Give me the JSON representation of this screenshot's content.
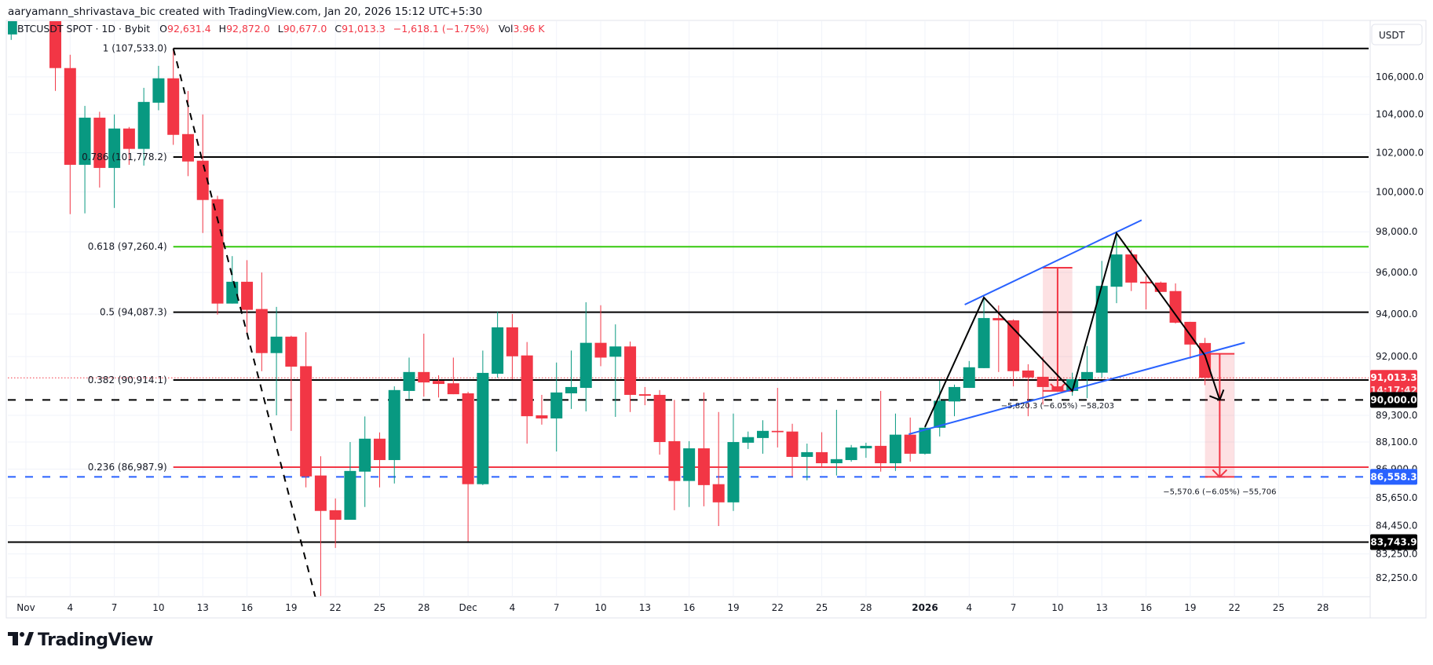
{
  "header": {
    "attribution": "aaryamann_shrivastava_bic created with TradingView.com, Jan 20, 2026 15:12 UTC+5:30"
  },
  "legend": {
    "symbol": "BTCUSDT SPOT · 1D · Bybit",
    "o_label": "O",
    "open": "92,631.4",
    "h_label": "H",
    "high": "92,872.0",
    "l_label": "L",
    "low": "90,677.0",
    "c_label": "C",
    "close": "91,013.3",
    "change": "−1,618.1 (−1.75%)",
    "vol_label": "Vol",
    "volume": "3.96 K"
  },
  "price_axis": {
    "currency": "USDT",
    "ticks": [
      {
        "price": 106000,
        "text": "106,000.0"
      },
      {
        "price": 104000,
        "text": "104,000.0"
      },
      {
        "price": 102000,
        "text": "102,000.0"
      },
      {
        "price": 100000,
        "text": "100,000.0"
      },
      {
        "price": 98000,
        "text": "98,000.0"
      },
      {
        "price": 96000,
        "text": "96,000.0"
      },
      {
        "price": 94000,
        "text": "94,000.0"
      },
      {
        "price": 92000,
        "text": "92,000.0"
      },
      {
        "price": 89300,
        "text": "89,300.0"
      },
      {
        "price": 88100,
        "text": "88,100.0"
      },
      {
        "price": 86900,
        "text": "86,900.0"
      },
      {
        "price": 85650,
        "text": "85,650.0"
      },
      {
        "price": 84450,
        "text": "84,450.0"
      },
      {
        "price": 83250,
        "text": "83,250.0"
      },
      {
        "price": 82250,
        "text": "82,250.0"
      }
    ]
  },
  "badges": [
    {
      "price": 91013.3,
      "text": "91,013.3",
      "sub": "14:17:42",
      "color": "#f23645"
    },
    {
      "price": 90000.0,
      "text": "90,000.0",
      "color": "#000000"
    },
    {
      "price": 86558.3,
      "text": "86,558.3",
      "color": "#2962ff"
    },
    {
      "price": 83743.9,
      "text": "83,743.9",
      "color": "#000000"
    }
  ],
  "time_axis": {
    "labels": [
      {
        "date": "2025-11-01",
        "text": "Nov",
        "bold": false
      },
      {
        "date": "2025-11-04",
        "text": "4"
      },
      {
        "date": "2025-11-07",
        "text": "7"
      },
      {
        "date": "2025-11-10",
        "text": "10"
      },
      {
        "date": "2025-11-13",
        "text": "13"
      },
      {
        "date": "2025-11-16",
        "text": "16"
      },
      {
        "date": "2025-11-19",
        "text": "19"
      },
      {
        "date": "2025-11-22",
        "text": "22"
      },
      {
        "date": "2025-11-25",
        "text": "25"
      },
      {
        "date": "2025-11-28",
        "text": "28"
      },
      {
        "date": "2025-12-01",
        "text": "Dec"
      },
      {
        "date": "2025-12-04",
        "text": "4"
      },
      {
        "date": "2025-12-07",
        "text": "7"
      },
      {
        "date": "2025-12-10",
        "text": "10"
      },
      {
        "date": "2025-12-13",
        "text": "13"
      },
      {
        "date": "2025-12-16",
        "text": "16"
      },
      {
        "date": "2025-12-19",
        "text": "19"
      },
      {
        "date": "2025-12-22",
        "text": "22"
      },
      {
        "date": "2025-12-25",
        "text": "25"
      },
      {
        "date": "2025-12-28",
        "text": "28"
      },
      {
        "date": "2026-01-01",
        "text": "2026",
        "bold": true
      },
      {
        "date": "2026-01-04",
        "text": "4"
      },
      {
        "date": "2026-01-07",
        "text": "7"
      },
      {
        "date": "2026-01-10",
        "text": "10"
      },
      {
        "date": "2026-01-13",
        "text": "13"
      },
      {
        "date": "2026-01-16",
        "text": "16"
      },
      {
        "date": "2026-01-19",
        "text": "19"
      },
      {
        "date": "2026-01-22",
        "text": "22"
      },
      {
        "date": "2026-01-25",
        "text": "25"
      },
      {
        "date": "2026-01-28",
        "text": "28"
      }
    ]
  },
  "logo": {
    "text": "TradingView"
  },
  "colors": {
    "up": "#089981",
    "down": "#f23645",
    "fib_green": "#36c90f",
    "blue": "#2962ff",
    "grid": "#f0f3fa"
  },
  "chart_data": {
    "type": "candlestick",
    "symbol": "BTCUSDT SPOT",
    "interval": "1D",
    "y_scale": "log",
    "ylim": [
      81500,
      109000
    ],
    "xlim": [
      "2025-10-31",
      "2026-01-31"
    ],
    "grid": true,
    "candles": [
      {
        "d": "2025-10-31",
        "o": 108300,
        "h": 110000,
        "l": 108000,
        "c": 109600
      },
      {
        "d": "2025-11-01",
        "o": 109600,
        "h": 110200,
        "l": 109400,
        "c": 110100
      },
      {
        "d": "2025-11-02",
        "o": 110100,
        "h": 111200,
        "l": 109700,
        "c": 110600
      },
      {
        "d": "2025-11-03",
        "o": 110600,
        "h": 110750,
        "l": 105250,
        "c": 106470
      },
      {
        "d": "2025-11-04",
        "o": 106470,
        "h": 107190,
        "l": 98880,
        "c": 101380
      },
      {
        "d": "2025-11-05",
        "o": 101380,
        "h": 104450,
        "l": 98920,
        "c": 103830
      },
      {
        "d": "2025-11-06",
        "o": 103830,
        "h": 104140,
        "l": 100220,
        "c": 101220
      },
      {
        "d": "2025-11-07",
        "o": 101220,
        "h": 104000,
        "l": 99190,
        "c": 103260
      },
      {
        "d": "2025-11-08",
        "o": 103260,
        "h": 103340,
        "l": 101380,
        "c": 102200
      },
      {
        "d": "2025-11-09",
        "o": 102200,
        "h": 105410,
        "l": 101340,
        "c": 104660
      },
      {
        "d": "2025-11-10",
        "o": 104620,
        "h": 106590,
        "l": 104220,
        "c": 105920
      },
      {
        "d": "2025-11-11",
        "o": 105920,
        "h": 107533,
        "l": 102410,
        "c": 102930
      },
      {
        "d": "2025-11-12",
        "o": 102970,
        "h": 105240,
        "l": 100800,
        "c": 101550
      },
      {
        "d": "2025-11-13",
        "o": 101590,
        "h": 104000,
        "l": 97940,
        "c": 99590
      },
      {
        "d": "2025-11-14",
        "o": 99630,
        "h": 99800,
        "l": 93970,
        "c": 94500
      },
      {
        "d": "2025-11-15",
        "o": 94500,
        "h": 96800,
        "l": 94500,
        "c": 95550
      },
      {
        "d": "2025-11-16",
        "o": 95550,
        "h": 96600,
        "l": 93040,
        "c": 94200
      },
      {
        "d": "2025-11-17",
        "o": 94240,
        "h": 96000,
        "l": 91320,
        "c": 92160
      },
      {
        "d": "2025-11-18",
        "o": 92160,
        "h": 94340,
        "l": 89300,
        "c": 92930
      },
      {
        "d": "2025-11-19",
        "o": 92930,
        "h": 92970,
        "l": 88600,
        "c": 91530
      },
      {
        "d": "2025-11-20",
        "o": 91550,
        "h": 93140,
        "l": 86100,
        "c": 86580
      },
      {
        "d": "2025-11-21",
        "o": 86620,
        "h": 87470,
        "l": 81490,
        "c": 85080
      },
      {
        "d": "2025-11-22",
        "o": 85110,
        "h": 85620,
        "l": 83500,
        "c": 84700
      },
      {
        "d": "2025-11-23",
        "o": 84700,
        "h": 88100,
        "l": 84700,
        "c": 86820
      },
      {
        "d": "2025-11-24",
        "o": 86790,
        "h": 89250,
        "l": 85250,
        "c": 88250
      },
      {
        "d": "2025-11-25",
        "o": 88250,
        "h": 88530,
        "l": 86100,
        "c": 87300
      },
      {
        "d": "2025-11-26",
        "o": 87300,
        "h": 90620,
        "l": 86270,
        "c": 90450
      },
      {
        "d": "2025-11-27",
        "o": 90410,
        "h": 91950,
        "l": 90040,
        "c": 91280
      },
      {
        "d": "2025-11-28",
        "o": 91280,
        "h": 93070,
        "l": 90150,
        "c": 90800
      },
      {
        "d": "2025-11-29",
        "o": 90870,
        "h": 91130,
        "l": 90110,
        "c": 90730
      },
      {
        "d": "2025-11-30",
        "o": 90760,
        "h": 91950,
        "l": 90260,
        "c": 90260
      },
      {
        "d": "2025-12-01",
        "o": 90300,
        "h": 90370,
        "l": 83780,
        "c": 86240
      },
      {
        "d": "2025-12-02",
        "o": 86240,
        "h": 92280,
        "l": 86200,
        "c": 91240
      },
      {
        "d": "2025-12-03",
        "o": 91200,
        "h": 94110,
        "l": 91020,
        "c": 93370
      },
      {
        "d": "2025-12-04",
        "o": 93370,
        "h": 94000,
        "l": 90950,
        "c": 92010
      },
      {
        "d": "2025-12-05",
        "o": 92050,
        "h": 92680,
        "l": 88030,
        "c": 89260
      },
      {
        "d": "2025-12-06",
        "o": 89300,
        "h": 90230,
        "l": 88880,
        "c": 89160
      },
      {
        "d": "2025-12-07",
        "o": 89160,
        "h": 91720,
        "l": 87680,
        "c": 90340
      },
      {
        "d": "2025-12-08",
        "o": 90300,
        "h": 92280,
        "l": 89590,
        "c": 90590
      },
      {
        "d": "2025-12-09",
        "o": 90550,
        "h": 94560,
        "l": 89480,
        "c": 92640
      },
      {
        "d": "2025-12-10",
        "o": 92640,
        "h": 94420,
        "l": 91550,
        "c": 91950
      },
      {
        "d": "2025-12-11",
        "o": 91990,
        "h": 93510,
        "l": 89230,
        "c": 92470
      },
      {
        "d": "2025-12-12",
        "o": 92470,
        "h": 92700,
        "l": 89450,
        "c": 90230
      },
      {
        "d": "2025-12-13",
        "o": 90260,
        "h": 90590,
        "l": 89760,
        "c": 90190
      },
      {
        "d": "2025-12-14",
        "o": 90230,
        "h": 90450,
        "l": 87540,
        "c": 88100
      },
      {
        "d": "2025-12-15",
        "o": 88140,
        "h": 90000,
        "l": 85110,
        "c": 86380
      },
      {
        "d": "2025-12-16",
        "o": 86380,
        "h": 88140,
        "l": 85250,
        "c": 87820
      },
      {
        "d": "2025-12-17",
        "o": 87820,
        "h": 90340,
        "l": 85280,
        "c": 86200
      },
      {
        "d": "2025-12-18",
        "o": 86240,
        "h": 89450,
        "l": 84430,
        "c": 85450
      },
      {
        "d": "2025-12-19",
        "o": 85450,
        "h": 89380,
        "l": 85080,
        "c": 88100
      },
      {
        "d": "2025-12-20",
        "o": 88070,
        "h": 88570,
        "l": 87790,
        "c": 88320
      },
      {
        "d": "2025-12-21",
        "o": 88280,
        "h": 89080,
        "l": 87580,
        "c": 88600
      },
      {
        "d": "2025-12-22",
        "o": 88600,
        "h": 90550,
        "l": 87860,
        "c": 88540
      },
      {
        "d": "2025-12-23",
        "o": 88570,
        "h": 88920,
        "l": 86580,
        "c": 87440
      },
      {
        "d": "2025-12-24",
        "o": 87440,
        "h": 88030,
        "l": 86410,
        "c": 87650
      },
      {
        "d": "2025-12-25",
        "o": 87650,
        "h": 88540,
        "l": 86990,
        "c": 87160
      },
      {
        "d": "2025-12-26",
        "o": 87160,
        "h": 89550,
        "l": 86620,
        "c": 87340
      },
      {
        "d": "2025-12-27",
        "o": 87300,
        "h": 87970,
        "l": 87230,
        "c": 87860
      },
      {
        "d": "2025-12-28",
        "o": 87820,
        "h": 88070,
        "l": 87400,
        "c": 87930
      },
      {
        "d": "2025-12-29",
        "o": 87930,
        "h": 90410,
        "l": 86790,
        "c": 87160
      },
      {
        "d": "2025-12-30",
        "o": 87160,
        "h": 89380,
        "l": 86820,
        "c": 88430
      },
      {
        "d": "2025-12-31",
        "o": 88430,
        "h": 89200,
        "l": 87230,
        "c": 87580
      },
      {
        "d": "2026-01-01",
        "o": 87580,
        "h": 88770,
        "l": 87540,
        "c": 88740
      },
      {
        "d": "2026-01-02",
        "o": 88740,
        "h": 90880,
        "l": 88350,
        "c": 89960
      },
      {
        "d": "2026-01-03",
        "o": 89930,
        "h": 90700,
        "l": 89260,
        "c": 90590
      },
      {
        "d": "2026-01-04",
        "o": 90550,
        "h": 91790,
        "l": 90550,
        "c": 91500
      },
      {
        "d": "2026-01-05",
        "o": 91460,
        "h": 94790,
        "l": 91460,
        "c": 93810
      },
      {
        "d": "2026-01-06",
        "o": 93810,
        "h": 94410,
        "l": 91280,
        "c": 93700
      },
      {
        "d": "2026-01-07",
        "o": 93700,
        "h": 93750,
        "l": 90620,
        "c": 91320
      },
      {
        "d": "2026-01-08",
        "o": 91350,
        "h": 91640,
        "l": 89260,
        "c": 91030
      },
      {
        "d": "2026-01-09",
        "o": 91060,
        "h": 91990,
        "l": 89790,
        "c": 90590
      },
      {
        "d": "2026-01-10",
        "o": 90620,
        "h": 90700,
        "l": 90410,
        "c": 90410
      },
      {
        "d": "2026-01-11",
        "o": 90410,
        "h": 91250,
        "l": 90190,
        "c": 90950
      },
      {
        "d": "2026-01-12",
        "o": 90950,
        "h": 92490,
        "l": 90080,
        "c": 91280
      },
      {
        "d": "2026-01-13",
        "o": 91250,
        "h": 96560,
        "l": 91030,
        "c": 95350
      },
      {
        "d": "2026-01-14",
        "o": 95310,
        "h": 97930,
        "l": 94520,
        "c": 96880
      },
      {
        "d": "2026-01-15",
        "o": 96880,
        "h": 97110,
        "l": 95100,
        "c": 95510
      },
      {
        "d": "2026-01-16",
        "o": 95550,
        "h": 95820,
        "l": 94220,
        "c": 95470
      },
      {
        "d": "2026-01-17",
        "o": 95510,
        "h": 95560,
        "l": 95060,
        "c": 95060
      },
      {
        "d": "2026-01-18",
        "o": 95100,
        "h": 95470,
        "l": 93550,
        "c": 93590
      },
      {
        "d": "2026-01-19",
        "o": 93630,
        "h": 93630,
        "l": 91900,
        "c": 92560
      },
      {
        "d": "2026-01-20",
        "o": 92631.4,
        "h": 92872.0,
        "l": 90677.0,
        "c": 91013.3
      }
    ],
    "fib_retracement": {
      "start_date": "2025-11-11",
      "levels": [
        {
          "ratio": "1",
          "price": 107533.0,
          "label": "1 (107,533.0)",
          "color": "#000000"
        },
        {
          "ratio": "0.786",
          "price": 101778.2,
          "label": "0.786 (101,778.2)",
          "color": "#000000"
        },
        {
          "ratio": "0.618",
          "price": 97260.4,
          "label": "0.618 (97,260.4)",
          "color": "#36c90f"
        },
        {
          "ratio": "0.5",
          "price": 94087.3,
          "label": "0.5 (94,087.3)",
          "color": "#000000"
        },
        {
          "ratio": "0.382",
          "price": 90914.1,
          "label": "0.382 (90,914.1)",
          "color": "#000000"
        },
        {
          "ratio": "0.236",
          "price": 86987.9,
          "label": "0.236 (86,987.9)",
          "color": "#f23645"
        }
      ]
    },
    "horizontal_lines": [
      {
        "price": 90000.0,
        "style": "dashed",
        "color": "#000000"
      },
      {
        "price": 86558.3,
        "style": "dashed",
        "color": "#2962ff"
      },
      {
        "price": 83743.9,
        "style": "solid",
        "color": "#000000"
      },
      {
        "price": 91013.3,
        "style": "dotted",
        "color": "#f23645"
      }
    ],
    "trend_line": {
      "style": "dashed",
      "color": "#000000",
      "points": [
        {
          "d": "2025-11-11",
          "p": 107533
        },
        {
          "d": "2025-11-21",
          "p": 80600
        }
      ]
    },
    "zigzag": {
      "color": "#000000",
      "points": [
        {
          "d": "2026-01-01",
          "p": 88770
        },
        {
          "d": "2026-01-05",
          "p": 94790
        },
        {
          "d": "2026-01-11",
          "p": 90410
        },
        {
          "d": "2026-01-14",
          "p": 97930
        },
        {
          "d": "2026-01-20",
          "p": 92050
        },
        {
          "d": "2026-01-21",
          "p": 90000
        }
      ]
    },
    "channel": {
      "color": "#2962ff",
      "lines": [
        [
          {
            "d": "2026-01-03.7",
            "p": 94450
          },
          {
            "d": "2026-01-15.7",
            "p": 98580
          }
        ],
        [
          {
            "d": "2025-12-30.9",
            "p": 88450
          },
          {
            "d": "2026-01-22.7",
            "p": 92650
          }
        ]
      ]
    },
    "measures": [
      {
        "from_date": "2026-01-09",
        "to_date": "2026-01-11",
        "top": 96230.0,
        "bottom": 90410.0,
        "label": "−5,820.3 (−6.05%) −58,203"
      },
      {
        "from_date": "2026-01-20",
        "to_date": "2026-01-22",
        "top": 92128.9,
        "bottom": 86558.3,
        "label": "−5,570.6 (−6.05%) −55,706"
      }
    ]
  }
}
